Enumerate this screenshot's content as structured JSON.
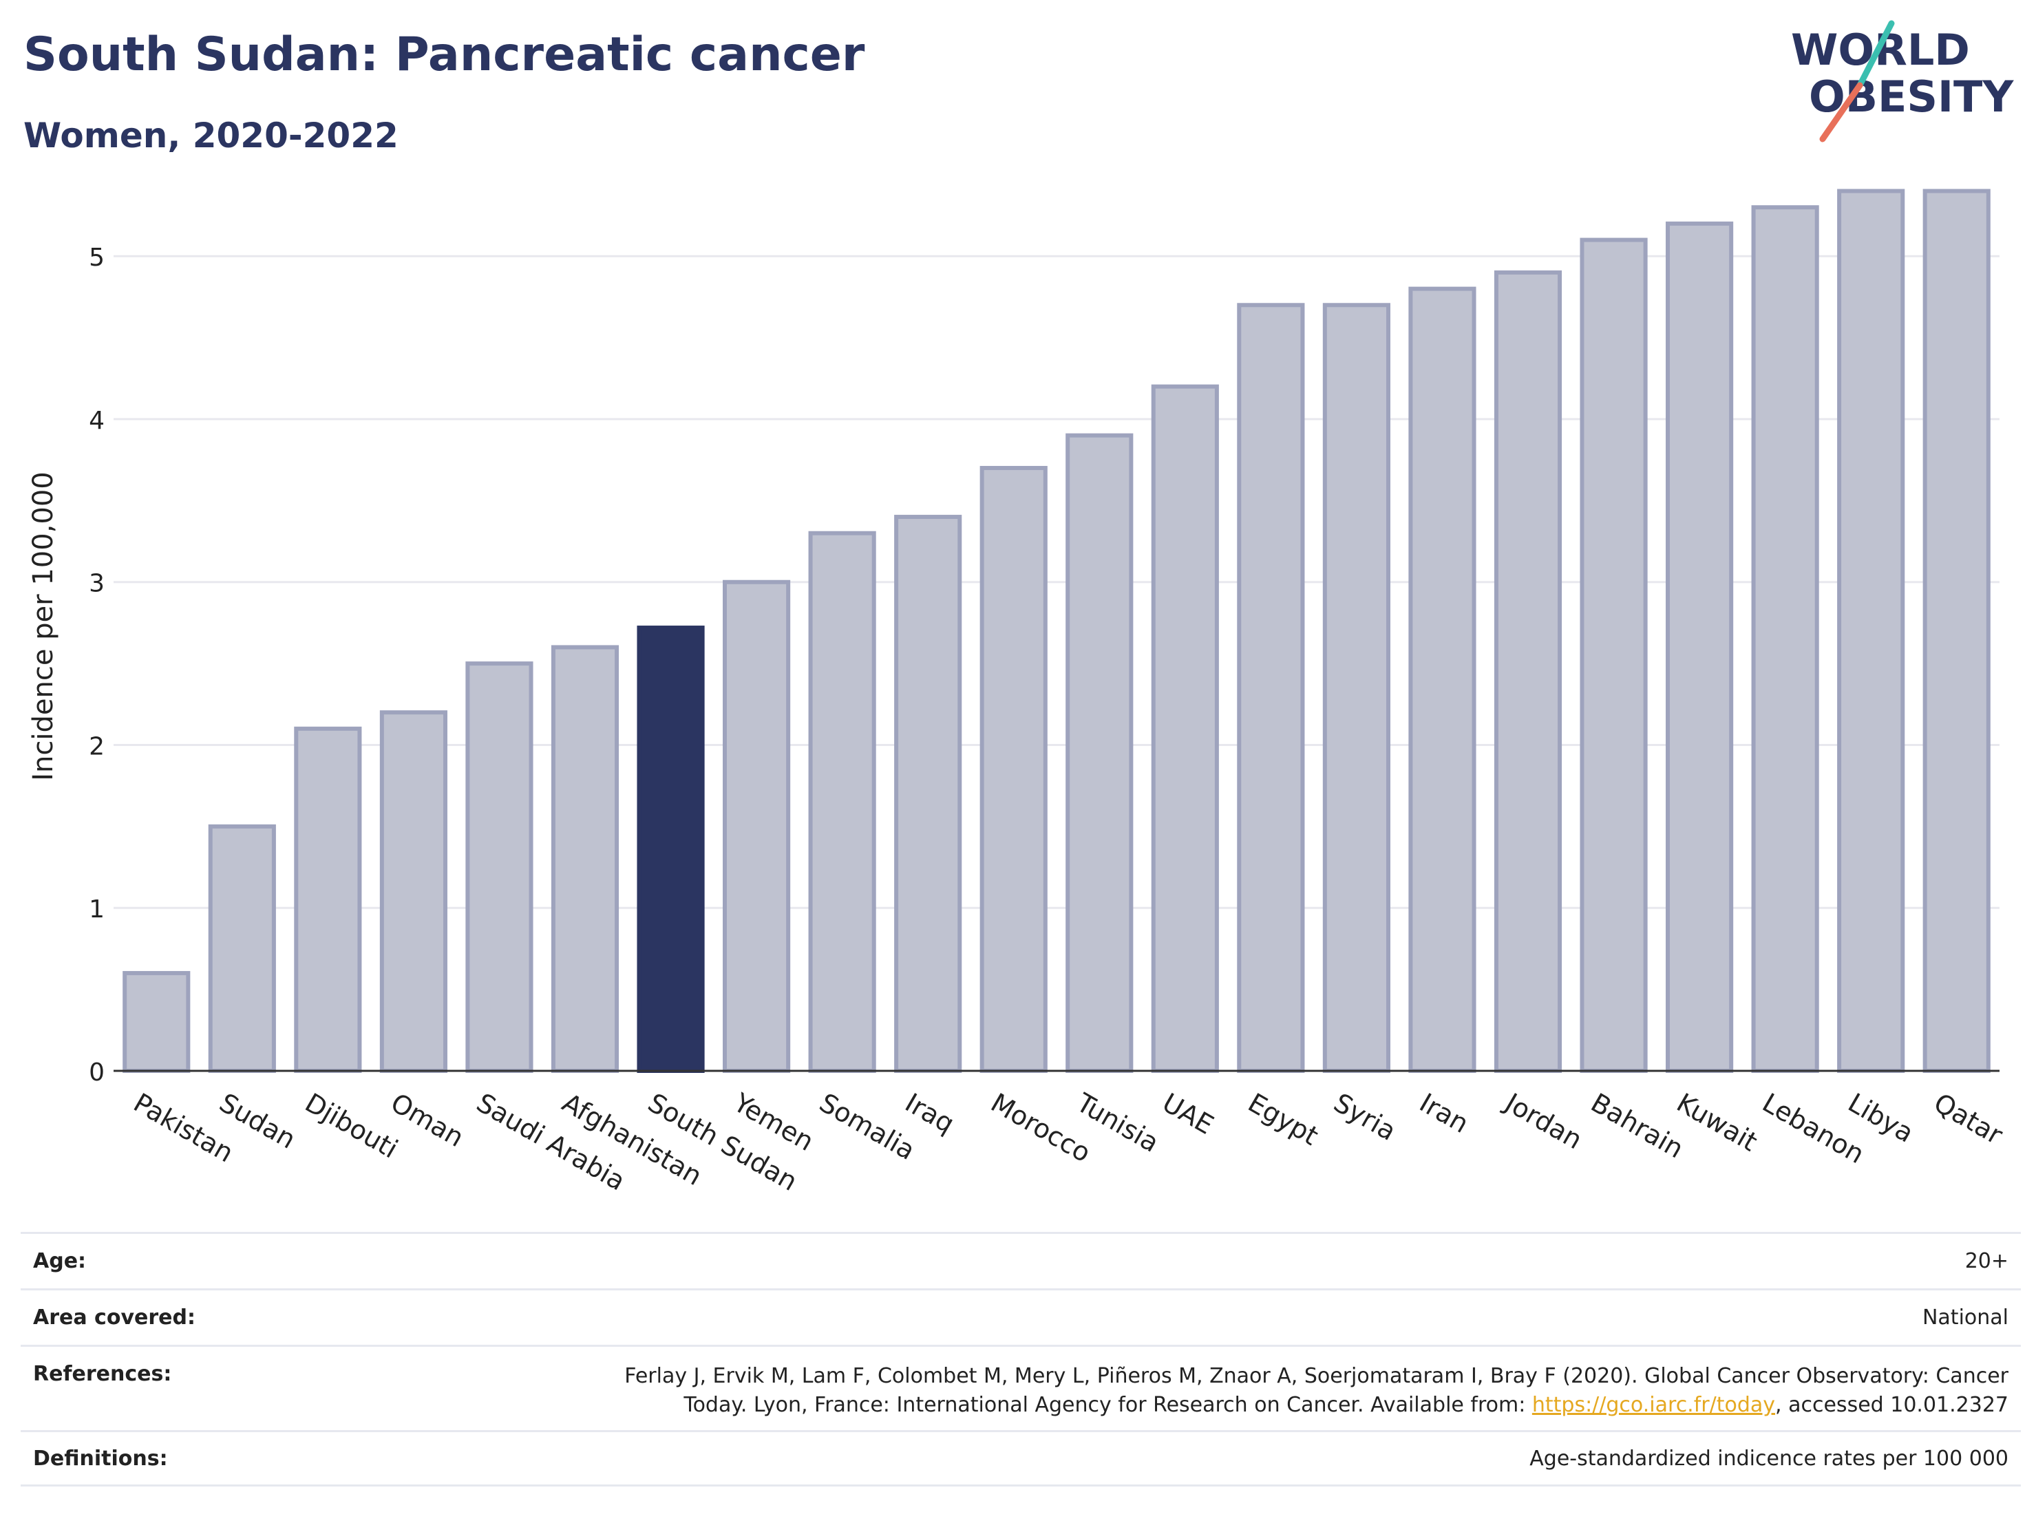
{
  "header": {
    "title": "South Sudan: Pancreatic cancer",
    "subtitle": "Women, 2020-2022"
  },
  "logo": {
    "line1": "WORLD",
    "line2": "OBESITY",
    "colors": {
      "text": "#2b3561",
      "teal": "#3bbfb0",
      "coral": "#e8705a"
    }
  },
  "colors": {
    "bar_default": "#bfc2d0",
    "bar_default_edge": "#9ea3bd",
    "bar_highlight": "#2b3561",
    "grid": "#e8e8ee",
    "link": "#e5a820"
  },
  "chart_data": {
    "type": "bar",
    "categories": [
      "Pakistan",
      "Sudan",
      "Djibouti",
      "Oman",
      "Saudi Arabia",
      "Afghanistan",
      "South Sudan",
      "Yemen",
      "Somalia",
      "Iraq",
      "Morocco",
      "Tunisia",
      "UAE",
      "Egypt",
      "Syria",
      "Iran",
      "Jordan",
      "Bahrain",
      "Kuwait",
      "Lebanon",
      "Libya",
      "Qatar"
    ],
    "values": [
      0.6,
      1.5,
      2.1,
      2.2,
      2.5,
      2.6,
      2.72,
      3.0,
      3.3,
      3.4,
      3.7,
      3.9,
      4.2,
      4.7,
      4.7,
      4.8,
      4.9,
      5.1,
      5.2,
      5.3,
      5.4,
      5.4
    ],
    "highlight": "South Sudan",
    "ylabel": "Incidence per 100,000",
    "xlabel": "",
    "ylim": [
      0,
      5.5
    ],
    "yticks": [
      0,
      1,
      2,
      3,
      4,
      5
    ],
    "grid": true
  },
  "info": {
    "age_label": "Age:",
    "age_value": "20+",
    "area_label": "Area covered:",
    "area_value": "National",
    "references_label": "References:",
    "references_line1": "Ferlay J, Ervik M, Lam F, Colombet M, Mery L, Piñeros M, Znaor A, Soerjomataram I, Bray F (2020). Global Cancer Observatory: Cancer",
    "references_line2_pre": "Today. Lyon, France: International Agency for Research on Cancer. Available from: ",
    "references_link": "https://gco.iarc.fr/today",
    "references_line2_post": ", accessed 10.01.2327",
    "definitions_label": "Definitions:",
    "definitions_value": "Age-standardized indicence rates per 100 000"
  }
}
